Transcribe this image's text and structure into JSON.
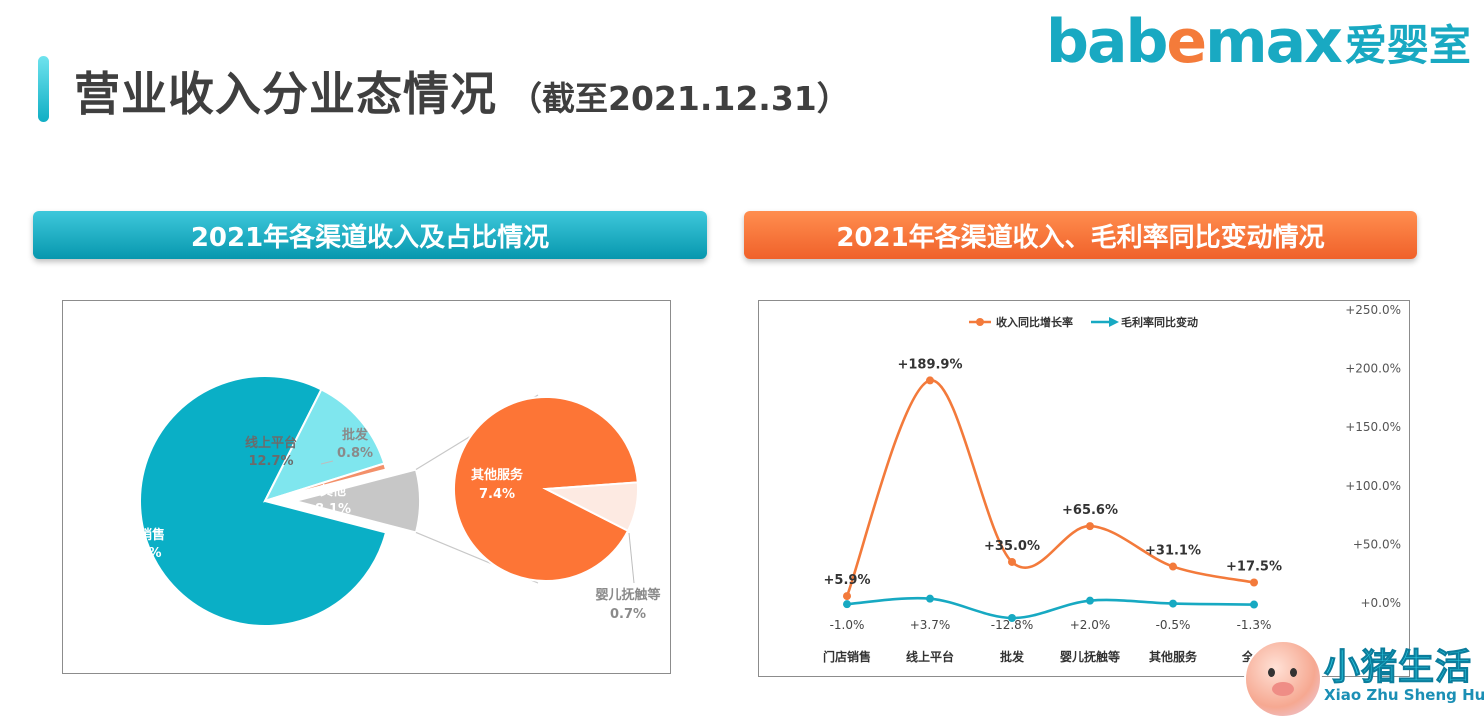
{
  "header": {
    "title": "营业收入分业态情况",
    "date_note": "（截至2021.12.31）"
  },
  "logo": {
    "word_pre": "bab",
    "word_e": "e",
    "word_post": "max",
    "cn": "爱婴室"
  },
  "left_banner": "2021年各渠道收入及占比情况",
  "right_banner": "2021年各渠道收入、毛利率同比变动情况",
  "colors": {
    "teal": "#0aafc6",
    "light_teal": "#7fe6ee",
    "orange": "#fd7536",
    "salmon": "#f3906a",
    "gray": "#c7c7c7",
    "pale": "#fdeae2",
    "line_orange": "#f37a3b",
    "line_teal": "#17a9c2"
  },
  "chart_data": [
    {
      "type": "pie",
      "title": "",
      "slices": [
        {
          "label": "门店销售",
          "value": 78.4,
          "value_label": "78.4%"
        },
        {
          "label": "线上平台",
          "value": 12.7,
          "value_label": "12.7%"
        },
        {
          "label": "批发",
          "value": 0.8,
          "value_label": "0.8%"
        },
        {
          "label": "其他",
          "value": 8.1,
          "value_label": "8.1%"
        }
      ],
      "breakout": {
        "of": "其他",
        "slices": [
          {
            "label": "其他服务",
            "value": 7.4,
            "value_label": "7.4%"
          },
          {
            "label": "婴儿抚触等",
            "value": 0.7,
            "value_label": "0.7%"
          }
        ]
      }
    },
    {
      "type": "line",
      "title": "",
      "categories": [
        "门店销售",
        "线上平台",
        "批发",
        "婴儿抚触等",
        "其他服务",
        "全部"
      ],
      "series": [
        {
          "name": "收入同比增长率",
          "values": [
            5.9,
            189.9,
            35.0,
            65.6,
            31.1,
            17.5
          ],
          "labels": [
            "+5.9%",
            "+189.9%",
            "+35.0%",
            "+65.6%",
            "+31.1%",
            "+17.5%"
          ]
        },
        {
          "name": "毛利率同比变动",
          "values": [
            -1.0,
            3.7,
            -12.8,
            2.0,
            -0.5,
            -1.3
          ],
          "labels": [
            "-1.0%",
            "+3.7%",
            "-12.8%",
            "+2.0%",
            "-0.5%",
            "-1.3%"
          ]
        }
      ],
      "y_axis": {
        "position": "right",
        "range": [
          0,
          250
        ],
        "ticks": [
          0,
          50,
          100,
          150,
          200,
          250
        ],
        "tick_labels": [
          "+0.0%",
          "+50.0%",
          "+100.0%",
          "+150.0%",
          "+200.0%",
          "+250.0%"
        ]
      },
      "legend": "top",
      "grid": false
    }
  ],
  "watermark": {
    "title": "小猪生活",
    "subtitle": "Xiao Zhu Sheng Huo"
  }
}
